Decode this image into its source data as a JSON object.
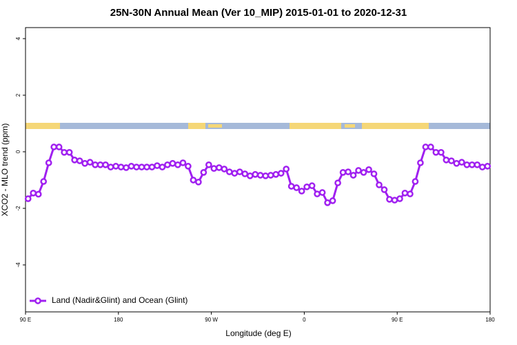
{
  "chart_data": {
    "type": "line",
    "title": "25N-30N Annual Mean (Ver 10_MIP)   2015-01-01 to 2020-12-31",
    "x_label": "Longitude (deg E)",
    "y_label": "XCO2 - MLO trend (ppm)",
    "x": [
      92.5,
      97.5,
      102.5,
      107.5,
      112.5,
      117.5,
      122.5,
      127.5,
      132.5,
      137.5,
      142.5,
      147.5,
      152.5,
      157.5,
      162.5,
      167.5,
      172.5,
      177.5,
      182.5,
      187.5,
      192.5,
      197.5,
      202.5,
      207.5,
      212.5,
      217.5,
      222.5,
      227.5,
      232.5,
      237.5,
      242.5,
      247.5,
      252.5,
      257.5,
      262.5,
      267.5,
      272.5,
      277.5,
      282.5,
      287.5,
      292.5,
      297.5,
      302.5,
      307.5,
      312.5,
      317.5,
      322.5,
      327.5,
      332.5,
      337.5,
      342.5,
      347.5,
      352.5,
      357.5,
      362.5,
      367.5,
      372.5,
      377.5,
      382.5,
      387.5,
      392.5,
      397.5,
      402.5,
      407.5,
      412.5,
      417.5,
      422.5,
      427.5,
      432.5,
      437.5,
      442.5,
      447.5,
      452.5,
      457.5,
      462.5,
      467.5,
      472.5,
      477.5,
      482.5,
      487.5,
      492.5,
      497.5,
      502.5,
      507.5,
      512.5,
      517.5,
      522.5,
      527.5,
      532.5,
      537.5
    ],
    "series": [
      {
        "name": "Land (Nadir&Glint) and Ocean (Glint)",
        "color": "#a020f0",
        "values": [
          -1.66,
          -1.46,
          -1.5,
          -1.05,
          -0.39,
          0.17,
          0.17,
          -0.02,
          -0.02,
          -0.29,
          -0.32,
          -0.41,
          -0.37,
          -0.46,
          -0.46,
          -0.46,
          -0.54,
          -0.51,
          -0.54,
          -0.56,
          -0.51,
          -0.54,
          -0.54,
          -0.54,
          -0.54,
          -0.49,
          -0.54,
          -0.46,
          -0.41,
          -0.46,
          -0.39,
          -0.51,
          -1.0,
          -1.07,
          -0.73,
          -0.46,
          -0.59,
          -0.56,
          -0.61,
          -0.71,
          -0.76,
          -0.71,
          -0.78,
          -0.85,
          -0.8,
          -0.83,
          -0.85,
          -0.83,
          -0.8,
          -0.76,
          -0.61,
          -1.22,
          -1.27,
          -1.39,
          -1.24,
          -1.2,
          -1.49,
          -1.44,
          -1.8,
          -1.73,
          -1.1,
          -0.73,
          -0.71,
          -0.83,
          -0.66,
          -0.73,
          -0.63,
          -0.78,
          -1.17,
          -1.34,
          -1.68,
          -1.71,
          -1.66,
          -1.46,
          -1.49,
          -1.05,
          -0.39,
          0.17,
          0.17,
          -0.02,
          -0.02,
          -0.29,
          -0.32,
          -0.41,
          -0.37,
          -0.46,
          -0.46,
          -0.46,
          -0.54,
          -0.51
        ]
      }
    ],
    "xlim": [
      90,
      540
    ],
    "xticks": [
      {
        "value": 90,
        "label": "90 E"
      },
      180,
      {
        "value": 270,
        "label": "90 W"
      },
      {
        "value": 360,
        "label": "0"
      },
      {
        "value": 450,
        "label": "90 E"
      },
      {
        "value": 540,
        "label": "180"
      }
    ],
    "ylim": [
      -5.66,
      4.39
    ],
    "yticks": [
      -4,
      -2,
      0,
      2,
      4
    ],
    "legend": "bottom-left"
  }
}
